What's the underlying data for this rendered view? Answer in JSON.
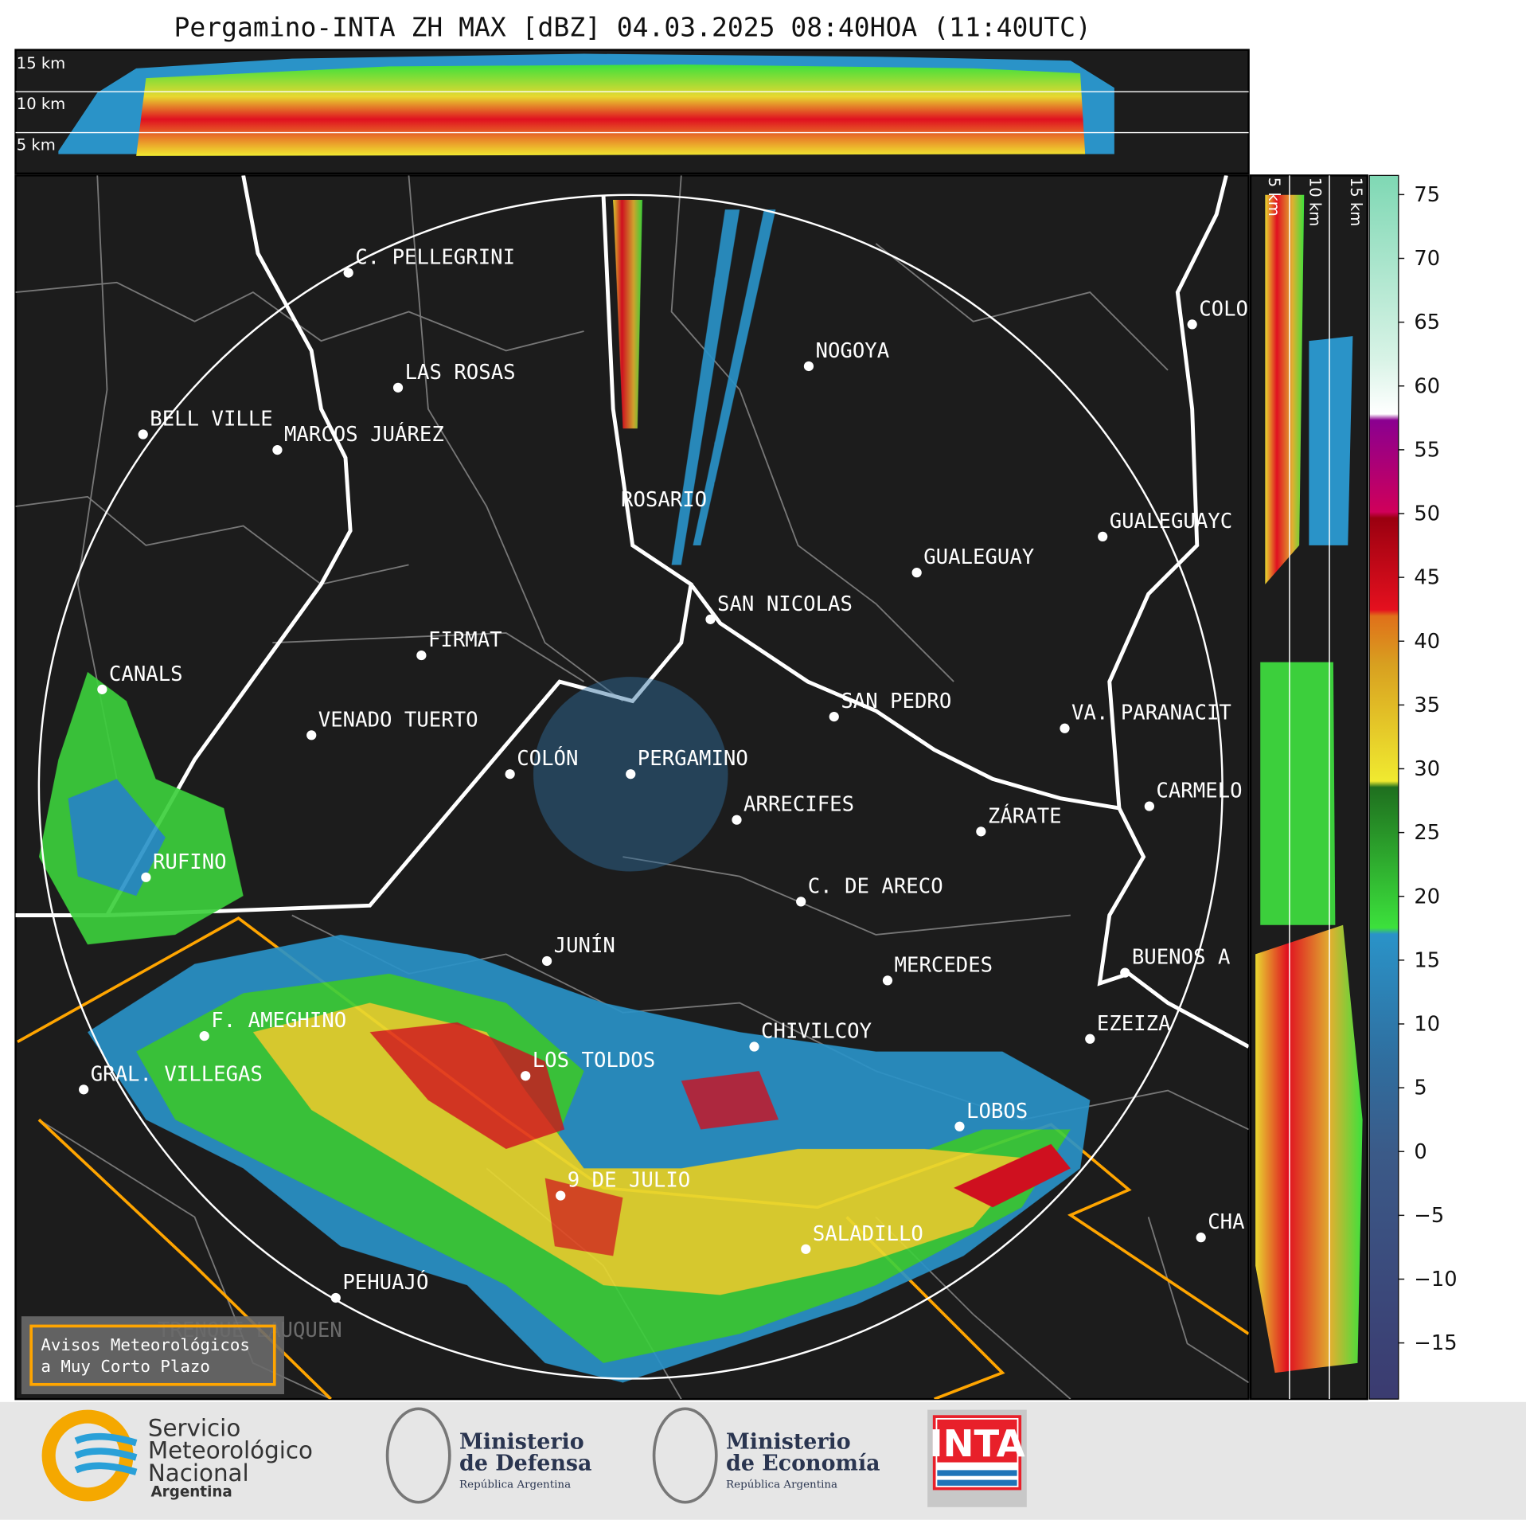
{
  "title": "Pergamino-INTA ZH MAX [dBZ] 04.03.2025 08:40HOA (11:40UTC)",
  "top_section": {
    "height_labels": [
      "15 km",
      "10 km",
      "5 km"
    ]
  },
  "side_section": {
    "height_labels": [
      "5 km",
      "10 km",
      "15 km"
    ]
  },
  "cities": [
    "C. PELLEGRINI",
    "LAS ROSAS",
    "BELL VILLE",
    "MARCOS JUÁREZ",
    "NOGOYA",
    "ROSARIO",
    "GUALEGUAY",
    "GUALEGUAYC",
    "SAN NICOLAS",
    "FIRMAT",
    "CANALS",
    "VENADO TUERTO",
    "SAN PEDRO",
    "VA. PARANACIT",
    "COLÓN",
    "PERGAMINO",
    "CARMELO",
    "ARRECIFES",
    "ZÁRATE",
    "RUFINO",
    "C. DE ARECO",
    "JUNÍN",
    "BUENOS A",
    "MERCEDES",
    "F. AMEGHINO",
    "CHIVILCOY",
    "EZEIZA",
    "GRAL. VILLEGAS",
    "LOS TOLDOS",
    "LOBOS",
    "9 DE JULIO",
    "SALADILLO",
    "CHA",
    "PEHUAJÓ",
    "TRENQUE LAUQUEN",
    "COLO"
  ],
  "colorbar": {
    "lim": [
      -19.4,
      76.5
    ],
    "ticks": [
      {
        "value": -15,
        "label": "−15"
      },
      {
        "value": -10,
        "label": "−10"
      },
      {
        "value": -5,
        "label": "−5"
      },
      0,
      5,
      10,
      15,
      20,
      25,
      30,
      35,
      40,
      45,
      50,
      55,
      60,
      65,
      70,
      75
    ]
  },
  "warning_box": {
    "lines": [
      "Avisos Meteorológicos",
      "a Muy Corto Plazo"
    ]
  },
  "footer": {
    "smn": [
      "Servicio",
      "Meteorológico",
      "Nacional",
      "Argentina"
    ],
    "defensa": [
      "Ministerio",
      "de Defensa",
      "República Argentina"
    ],
    "economia": [
      "Ministerio",
      "de Economía",
      "República Argentina"
    ],
    "inta": "INTA"
  }
}
